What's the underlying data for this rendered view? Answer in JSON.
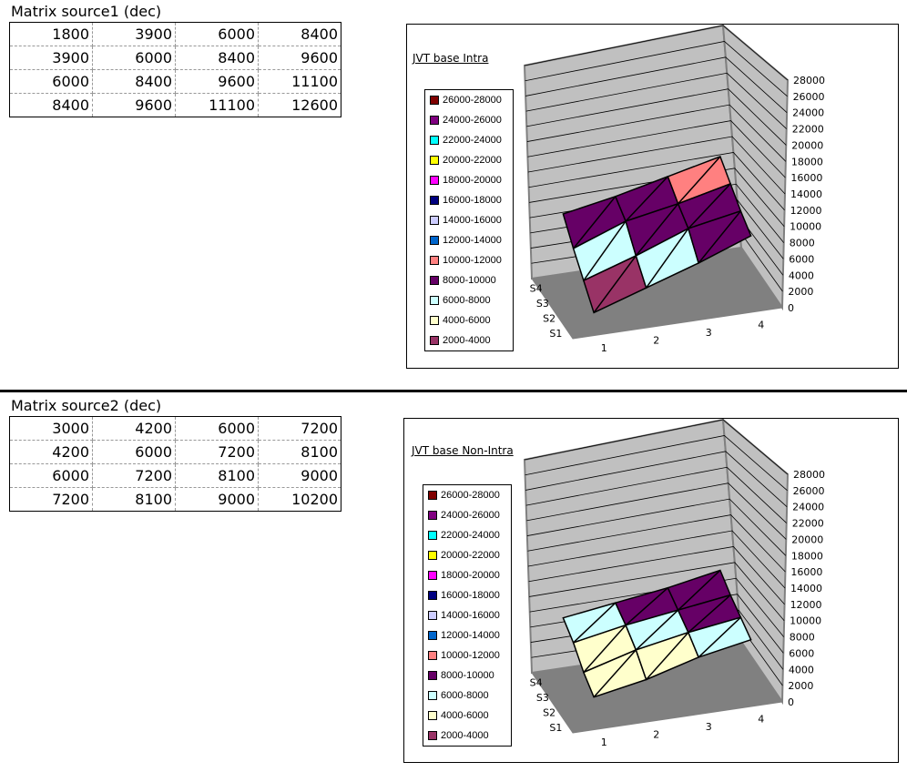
{
  "sections": [
    {
      "title": "Matrix source1 (dec)",
      "rows": [
        [
          1800,
          3900,
          6000,
          8400
        ],
        [
          3900,
          6000,
          8400,
          9600
        ],
        [
          6000,
          8400,
          9600,
          11100
        ],
        [
          8400,
          9600,
          11100,
          12600
        ]
      ]
    },
    {
      "title": "Matrix source2 (dec)",
      "rows": [
        [
          3000,
          4200,
          6000,
          7200
        ],
        [
          4200,
          6000,
          7200,
          8100
        ],
        [
          6000,
          7200,
          8100,
          9000
        ],
        [
          7200,
          8100,
          9000,
          10200
        ]
      ]
    }
  ],
  "chart_data": [
    {
      "type": "surface",
      "title": "JVT base Intra",
      "categories": [
        "1",
        "2",
        "3",
        "4"
      ],
      "series_names": [
        "S1",
        "S2",
        "S3",
        "S4"
      ],
      "values": [
        [
          1800,
          3900,
          6000,
          8400
        ],
        [
          3900,
          6000,
          8400,
          9600
        ],
        [
          6000,
          8400,
          9600,
          11100
        ],
        [
          8400,
          9600,
          11100,
          12600
        ]
      ],
      "zlim": [
        0,
        28000
      ],
      "z_ticks": [
        "0",
        "2000",
        "4000",
        "6000",
        "8000",
        "10000",
        "12000",
        "14000",
        "16000",
        "18000",
        "20000",
        "22000",
        "24000",
        "26000",
        "28000"
      ],
      "legend_position": "left"
    },
    {
      "type": "surface",
      "title": "JVT base Non-Intra",
      "categories": [
        "1",
        "2",
        "3",
        "4"
      ],
      "series_names": [
        "S1",
        "S2",
        "S3",
        "S4"
      ],
      "values": [
        [
          3000,
          4200,
          6000,
          7200
        ],
        [
          4200,
          6000,
          7200,
          8100
        ],
        [
          6000,
          7200,
          8100,
          9000
        ],
        [
          7200,
          8100,
          9000,
          10200
        ]
      ],
      "zlim": [
        0,
        28000
      ],
      "z_ticks": [
        "0",
        "2000",
        "4000",
        "6000",
        "8000",
        "10000",
        "12000",
        "14000",
        "16000",
        "18000",
        "20000",
        "22000",
        "24000",
        "26000",
        "28000"
      ],
      "legend_position": "left"
    }
  ],
  "legend": [
    {
      "label": "26000-28000",
      "color": "#800000",
      "min": 26000
    },
    {
      "label": "24000-26000",
      "color": "#800080",
      "min": 24000
    },
    {
      "label": "22000-24000",
      "color": "#00FFFF",
      "min": 22000
    },
    {
      "label": "20000-22000",
      "color": "#FFFF00",
      "min": 20000
    },
    {
      "label": "18000-20000",
      "color": "#FF00FF",
      "min": 18000
    },
    {
      "label": "16000-18000",
      "color": "#000080",
      "min": 16000
    },
    {
      "label": "14000-16000",
      "color": "#CCCCFF",
      "min": 14000
    },
    {
      "label": "12000-14000",
      "color": "#0066CC",
      "min": 12000
    },
    {
      "label": "10000-12000",
      "color": "#FF8080",
      "min": 10000
    },
    {
      "label": "8000-10000",
      "color": "#660066",
      "min": 8000
    },
    {
      "label": "6000-8000",
      "color": "#CCFFFF",
      "min": 6000
    },
    {
      "label": "4000-6000",
      "color": "#FFFFCC",
      "min": 4000
    },
    {
      "label": "2000-4000",
      "color": "#993366",
      "min": 2000
    }
  ]
}
